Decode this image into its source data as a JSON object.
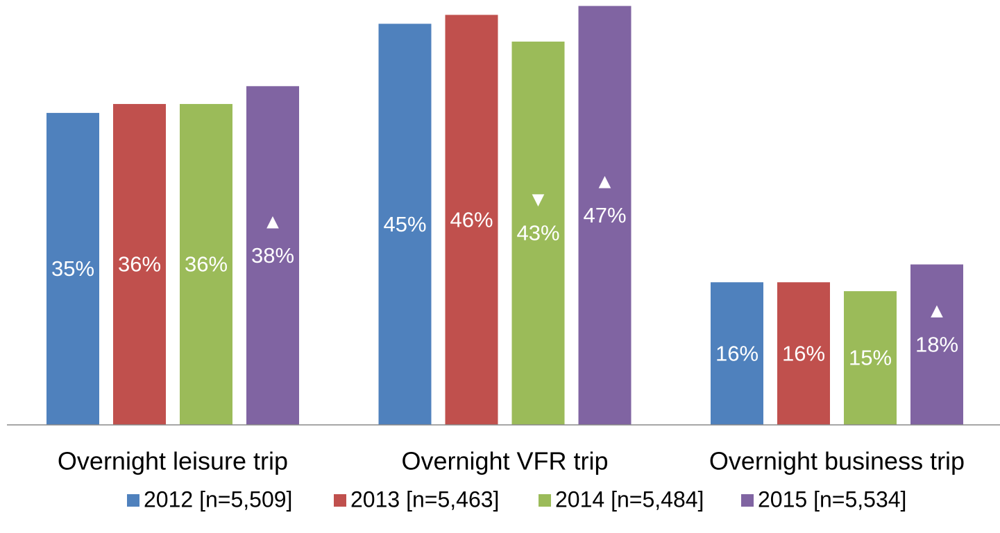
{
  "chart_data": {
    "type": "bar",
    "categories": [
      "Overnight leisure trip",
      "Overnight VFR trip",
      "Overnight business trip"
    ],
    "series": [
      {
        "name": "2012 [n=5,509]",
        "color": "#4f81bd",
        "values": [
          35,
          45,
          16
        ],
        "value_labels": [
          "35%",
          "45%",
          "16%"
        ],
        "markers": [
          null,
          null,
          null
        ]
      },
      {
        "name": "2013 [n=5,463]",
        "color": "#c0504d",
        "values": [
          36,
          46,
          16
        ],
        "value_labels": [
          "36%",
          "46%",
          "16%"
        ],
        "markers": [
          null,
          null,
          null
        ]
      },
      {
        "name": "2014 [n=5,484]",
        "color": "#9bbb59",
        "values": [
          36,
          43,
          15
        ],
        "value_labels": [
          "36%",
          "43%",
          "15%"
        ],
        "markers": [
          null,
          "▼",
          null
        ]
      },
      {
        "name": "2015 [n=5,534]",
        "color": "#8064a2",
        "values": [
          38,
          47,
          18
        ],
        "value_labels": [
          "38%",
          "47%",
          "18%"
        ],
        "markers": [
          "▲",
          "▲",
          "▲"
        ]
      }
    ],
    "legend": "bottom"
  }
}
